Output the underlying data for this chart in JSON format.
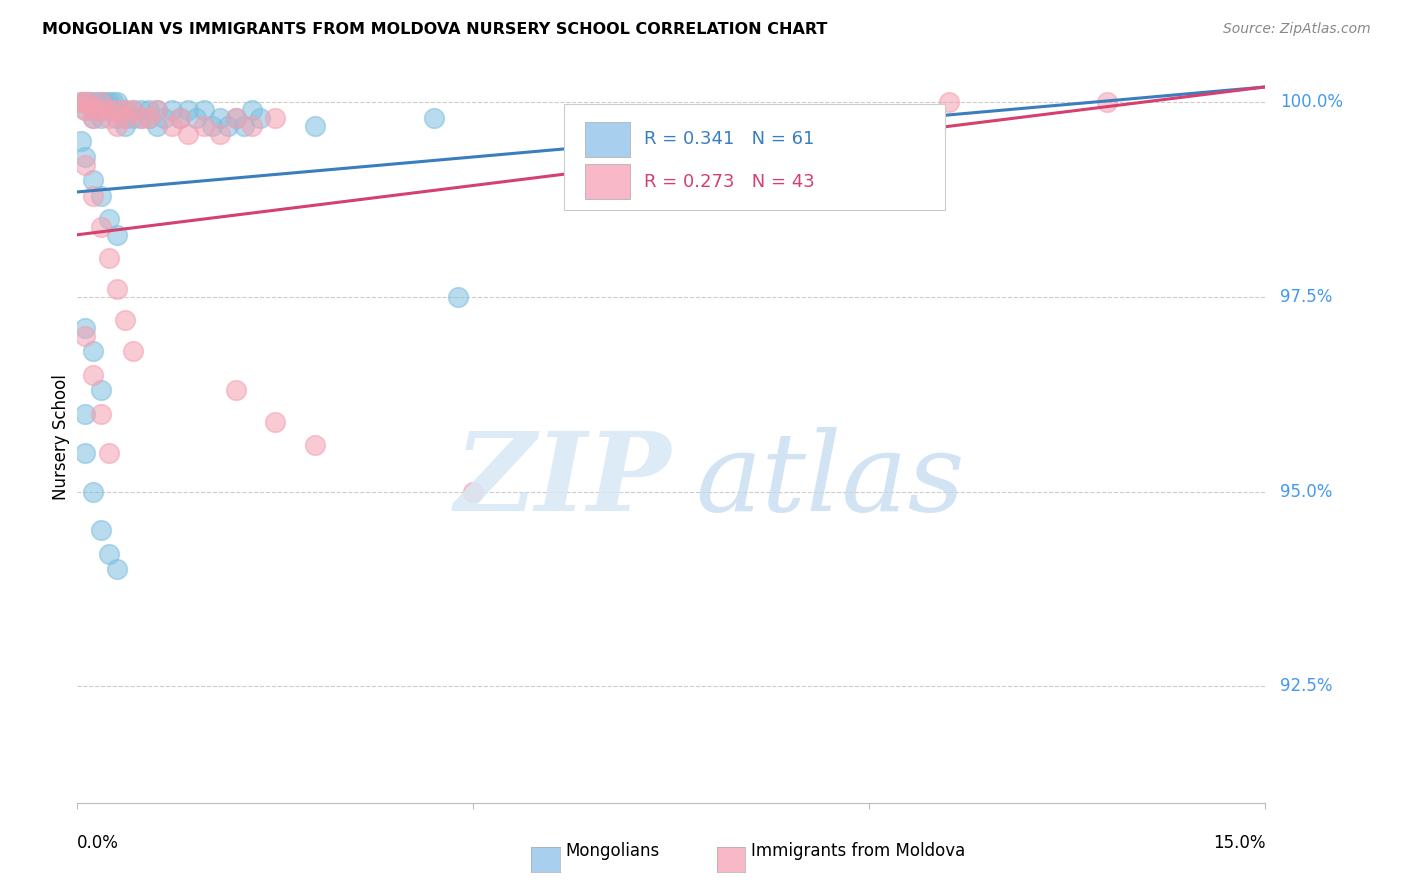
{
  "title": "MONGOLIAN VS IMMIGRANTS FROM MOLDOVA NURSERY SCHOOL CORRELATION CHART",
  "source": "Source: ZipAtlas.com",
  "ylabel": "Nursery School",
  "ytick_labels": [
    "100.0%",
    "97.5%",
    "95.0%",
    "92.5%"
  ],
  "ytick_values": [
    1.0,
    0.975,
    0.95,
    0.925
  ],
  "ymin": 0.91,
  "ymax": 1.004,
  "xmin": 0.0,
  "xmax": 0.15,
  "legend_blue_text": "R = 0.341   N = 61",
  "legend_pink_text": "R = 0.273   N = 43",
  "blue_scatter_color": "#7fbfdf",
  "pink_scatter_color": "#f4a0b0",
  "blue_line_color": "#3a7ebf",
  "pink_line_color": "#d44070",
  "blue_legend_color": "#a8d0ee",
  "pink_legend_color": "#f8b8c8",
  "ytick_color": "#4499ee",
  "grid_color": "#cccccc",
  "watermark_zip_color": "#d8e8f5",
  "watermark_atlas_color": "#c0d8f0",
  "blue_line_x": [
    0.0,
    0.15
  ],
  "blue_line_y": [
    0.9885,
    1.002
  ],
  "pink_line_x": [
    0.0,
    0.15
  ],
  "pink_line_y": [
    0.983,
    1.002
  ],
  "mongolians_x": [
    0.0005,
    0.001,
    0.001,
    0.0015,
    0.002,
    0.002,
    0.002,
    0.0025,
    0.003,
    0.003,
    0.003,
    0.0035,
    0.004,
    0.004,
    0.0045,
    0.005,
    0.005,
    0.005,
    0.006,
    0.006,
    0.006,
    0.007,
    0.007,
    0.008,
    0.008,
    0.009,
    0.009,
    0.01,
    0.01,
    0.011,
    0.012,
    0.013,
    0.014,
    0.015,
    0.016,
    0.017,
    0.018,
    0.019,
    0.02,
    0.021,
    0.022,
    0.023,
    0.0005,
    0.001,
    0.002,
    0.003,
    0.004,
    0.005,
    0.001,
    0.002,
    0.003,
    0.03,
    0.045,
    0.048,
    0.001,
    0.002,
    0.003,
    0.004,
    0.005,
    0.08,
    0.001
  ],
  "mongolians_y": [
    1.0,
    1.0,
    0.999,
    1.0,
    1.0,
    0.999,
    0.998,
    1.0,
    1.0,
    0.999,
    0.998,
    1.0,
    1.0,
    0.999,
    1.0,
    1.0,
    0.999,
    0.998,
    0.999,
    0.998,
    0.997,
    0.999,
    0.998,
    0.999,
    0.998,
    0.999,
    0.998,
    0.999,
    0.997,
    0.998,
    0.999,
    0.998,
    0.999,
    0.998,
    0.999,
    0.997,
    0.998,
    0.997,
    0.998,
    0.997,
    0.999,
    0.998,
    0.995,
    0.993,
    0.99,
    0.988,
    0.985,
    0.983,
    0.971,
    0.968,
    0.963,
    0.997,
    0.998,
    0.975,
    0.955,
    0.95,
    0.945,
    0.942,
    0.94,
    0.998,
    0.96
  ],
  "moldova_x": [
    0.0005,
    0.001,
    0.001,
    0.0015,
    0.002,
    0.002,
    0.003,
    0.003,
    0.004,
    0.004,
    0.005,
    0.005,
    0.006,
    0.006,
    0.007,
    0.008,
    0.009,
    0.01,
    0.012,
    0.013,
    0.014,
    0.016,
    0.018,
    0.02,
    0.022,
    0.025,
    0.001,
    0.002,
    0.003,
    0.004,
    0.005,
    0.006,
    0.007,
    0.02,
    0.025,
    0.03,
    0.05,
    0.11,
    0.13,
    0.001,
    0.002,
    0.003,
    0.004
  ],
  "moldova_y": [
    1.0,
    1.0,
    0.999,
    1.0,
    0.999,
    0.998,
    1.0,
    0.999,
    0.999,
    0.998,
    0.999,
    0.997,
    0.999,
    0.998,
    0.999,
    0.998,
    0.998,
    0.999,
    0.997,
    0.998,
    0.996,
    0.997,
    0.996,
    0.998,
    0.997,
    0.998,
    0.992,
    0.988,
    0.984,
    0.98,
    0.976,
    0.972,
    0.968,
    0.963,
    0.959,
    0.956,
    0.95,
    1.0,
    1.0,
    0.97,
    0.965,
    0.96,
    0.955
  ]
}
